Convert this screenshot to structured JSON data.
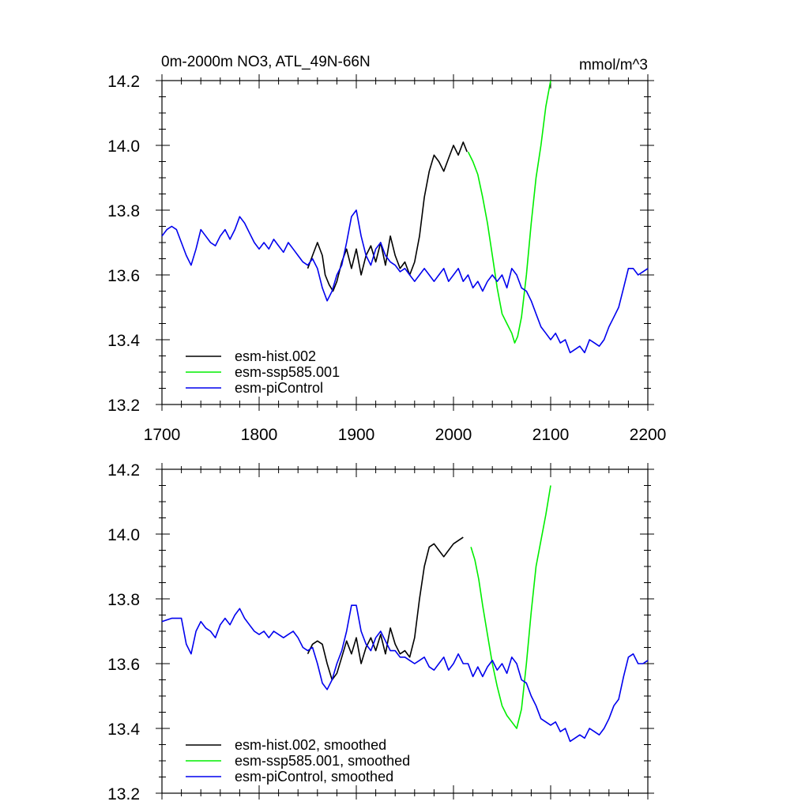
{
  "chart_data": [
    {
      "type": "line",
      "title": "0m-2000m NO3, ATL_49N-66N",
      "units": "mmol/m^3",
      "xlim": [
        1700,
        2200
      ],
      "ylim": [
        13.2,
        14.2
      ],
      "xticks": [
        "1700",
        "1800",
        "1900",
        "2000",
        "2100",
        "2200"
      ],
      "yticks": [
        "13.2",
        "13.4",
        "13.6",
        "13.8",
        "14.0",
        "14.2"
      ],
      "series": [
        {
          "name": "esm-hist.002",
          "color": "#000000",
          "x": [
            1850,
            1855,
            1860,
            1865,
            1868,
            1872,
            1876,
            1880,
            1885,
            1890,
            1895,
            1900,
            1905,
            1910,
            1915,
            1920,
            1925,
            1930,
            1935,
            1940,
            1945,
            1950,
            1955,
            1960,
            1965,
            1970,
            1975,
            1980,
            1985,
            1990,
            1995,
            2000,
            2005,
            2010,
            2014
          ],
          "y": [
            13.62,
            13.66,
            13.7,
            13.66,
            13.6,
            13.57,
            13.55,
            13.58,
            13.64,
            13.68,
            13.62,
            13.68,
            13.6,
            13.66,
            13.69,
            13.64,
            13.7,
            13.63,
            13.72,
            13.66,
            13.62,
            13.64,
            13.6,
            13.64,
            13.72,
            13.84,
            13.92,
            13.97,
            13.95,
            13.92,
            13.96,
            14.0,
            13.97,
            14.01,
            13.98
          ]
        },
        {
          "name": "esm-ssp585.001",
          "color": "#00ee00",
          "x": [
            2015,
            2020,
            2025,
            2030,
            2035,
            2040,
            2045,
            2050,
            2055,
            2060,
            2063,
            2066,
            2070,
            2075,
            2080,
            2085,
            2090,
            2095,
            2100
          ],
          "y": [
            13.98,
            13.95,
            13.91,
            13.84,
            13.76,
            13.66,
            13.56,
            13.48,
            13.45,
            13.42,
            13.39,
            13.41,
            13.47,
            13.6,
            13.76,
            13.9,
            14.0,
            14.12,
            14.2
          ]
        },
        {
          "name": "esm-piControl",
          "color": "#0000ee",
          "x": [
            1700,
            1705,
            1710,
            1715,
            1720,
            1725,
            1730,
            1735,
            1740,
            1745,
            1750,
            1755,
            1760,
            1765,
            1770,
            1775,
            1780,
            1785,
            1790,
            1795,
            1800,
            1805,
            1810,
            1815,
            1820,
            1825,
            1830,
            1835,
            1840,
            1845,
            1850,
            1855,
            1860,
            1865,
            1870,
            1875,
            1880,
            1885,
            1890,
            1895,
            1900,
            1905,
            1910,
            1915,
            1920,
            1925,
            1930,
            1935,
            1940,
            1945,
            1950,
            1955,
            1960,
            1965,
            1970,
            1975,
            1980,
            1985,
            1990,
            1995,
            2000,
            2005,
            2010,
            2015,
            2020,
            2025,
            2030,
            2035,
            2040,
            2045,
            2050,
            2055,
            2060,
            2065,
            2070,
            2075,
            2080,
            2085,
            2090,
            2095,
            2100,
            2105,
            2110,
            2115,
            2120,
            2125,
            2130,
            2135,
            2140,
            2145,
            2150,
            2155,
            2160,
            2165,
            2170,
            2175,
            2180,
            2185,
            2190,
            2195,
            2200
          ],
          "y": [
            13.72,
            13.74,
            13.75,
            13.74,
            13.7,
            13.66,
            13.63,
            13.68,
            13.74,
            13.72,
            13.7,
            13.69,
            13.72,
            13.74,
            13.71,
            13.74,
            13.78,
            13.76,
            13.73,
            13.7,
            13.68,
            13.7,
            13.68,
            13.71,
            13.69,
            13.67,
            13.7,
            13.68,
            13.66,
            13.64,
            13.63,
            13.65,
            13.62,
            13.56,
            13.52,
            13.55,
            13.6,
            13.63,
            13.7,
            13.78,
            13.8,
            13.72,
            13.66,
            13.63,
            13.68,
            13.7,
            13.66,
            13.64,
            13.63,
            13.61,
            13.62,
            13.6,
            13.58,
            13.6,
            13.62,
            13.6,
            13.58,
            13.6,
            13.62,
            13.58,
            13.6,
            13.62,
            13.58,
            13.6,
            13.56,
            13.58,
            13.55,
            13.58,
            13.6,
            13.58,
            13.6,
            13.56,
            13.62,
            13.6,
            13.56,
            13.55,
            13.52,
            13.48,
            13.44,
            13.42,
            13.4,
            13.42,
            13.39,
            13.4,
            13.36,
            13.37,
            13.38,
            13.36,
            13.4,
            13.39,
            13.38,
            13.4,
            13.44,
            13.47,
            13.5,
            13.56,
            13.62,
            13.62,
            13.6,
            13.61,
            13.62
          ]
        }
      ]
    },
    {
      "type": "line",
      "title": "",
      "xlim": [
        1700,
        2200
      ],
      "ylim": [
        13.2,
        14.2
      ],
      "yticks": [
        "13.2",
        "13.4",
        "13.6",
        "13.8",
        "14.0",
        "14.2"
      ],
      "series": [
        {
          "name": "esm-hist.002, smoothed",
          "color": "#000000",
          "x": [
            1850,
            1855,
            1860,
            1865,
            1870,
            1875,
            1880,
            1885,
            1890,
            1895,
            1900,
            1905,
            1910,
            1915,
            1920,
            1925,
            1930,
            1935,
            1940,
            1945,
            1950,
            1955,
            1960,
            1965,
            1970,
            1975,
            1980,
            1985,
            1990,
            1995,
            2000,
            2005,
            2010
          ],
          "y": [
            13.63,
            13.66,
            13.67,
            13.66,
            13.6,
            13.55,
            13.57,
            13.62,
            13.67,
            13.63,
            13.68,
            13.6,
            13.65,
            13.68,
            13.64,
            13.69,
            13.63,
            13.71,
            13.66,
            13.63,
            13.64,
            13.62,
            13.68,
            13.8,
            13.9,
            13.96,
            13.97,
            13.95,
            13.93,
            13.95,
            13.97,
            13.98,
            13.99
          ]
        },
        {
          "name": "esm-ssp585.001, smoothed",
          "color": "#00ee00",
          "x": [
            2018,
            2022,
            2026,
            2030,
            2035,
            2040,
            2045,
            2050,
            2055,
            2060,
            2065,
            2070,
            2075,
            2080,
            2085,
            2090,
            2095,
            2100
          ],
          "y": [
            13.96,
            13.92,
            13.86,
            13.78,
            13.69,
            13.6,
            13.53,
            13.47,
            13.44,
            13.42,
            13.4,
            13.46,
            13.6,
            13.76,
            13.9,
            13.98,
            14.06,
            14.15
          ]
        },
        {
          "name": "esm-piControl, smoothed",
          "color": "#0000ee",
          "x": [
            1700,
            1710,
            1720,
            1725,
            1730,
            1735,
            1740,
            1745,
            1750,
            1755,
            1760,
            1765,
            1770,
            1775,
            1780,
            1785,
            1790,
            1795,
            1800,
            1805,
            1810,
            1815,
            1820,
            1825,
            1830,
            1835,
            1840,
            1845,
            1850,
            1855,
            1860,
            1865,
            1870,
            1875,
            1880,
            1885,
            1890,
            1895,
            1900,
            1905,
            1910,
            1915,
            1920,
            1925,
            1930,
            1935,
            1940,
            1945,
            1950,
            1955,
            1960,
            1965,
            1970,
            1975,
            1980,
            1985,
            1990,
            1995,
            2000,
            2005,
            2010,
            2015,
            2020,
            2025,
            2030,
            2035,
            2040,
            2045,
            2050,
            2055,
            2060,
            2065,
            2070,
            2075,
            2080,
            2085,
            2090,
            2095,
            2100,
            2105,
            2110,
            2115,
            2120,
            2125,
            2130,
            2135,
            2140,
            2145,
            2150,
            2155,
            2160,
            2165,
            2170,
            2175,
            2180,
            2185,
            2190,
            2195,
            2200
          ],
          "y": [
            13.73,
            13.74,
            13.74,
            13.66,
            13.63,
            13.7,
            13.73,
            13.71,
            13.7,
            13.68,
            13.72,
            13.74,
            13.72,
            13.75,
            13.77,
            13.74,
            13.72,
            13.7,
            13.69,
            13.7,
            13.68,
            13.7,
            13.69,
            13.68,
            13.69,
            13.7,
            13.68,
            13.65,
            13.64,
            13.65,
            13.6,
            13.54,
            13.52,
            13.55,
            13.6,
            13.64,
            13.7,
            13.78,
            13.78,
            13.7,
            13.66,
            13.64,
            13.68,
            13.7,
            13.67,
            13.64,
            13.64,
            13.62,
            13.62,
            13.61,
            13.6,
            13.61,
            13.62,
            13.59,
            13.58,
            13.6,
            13.62,
            13.58,
            13.6,
            13.63,
            13.6,
            13.6,
            13.56,
            13.59,
            13.56,
            13.59,
            13.61,
            13.58,
            13.6,
            13.57,
            13.62,
            13.6,
            13.55,
            13.54,
            13.5,
            13.47,
            13.43,
            13.42,
            13.41,
            13.42,
            13.39,
            13.4,
            13.36,
            13.37,
            13.38,
            13.37,
            13.4,
            13.39,
            13.38,
            13.4,
            13.43,
            13.47,
            13.49,
            13.56,
            13.62,
            13.63,
            13.6,
            13.6,
            13.61
          ]
        }
      ]
    }
  ]
}
